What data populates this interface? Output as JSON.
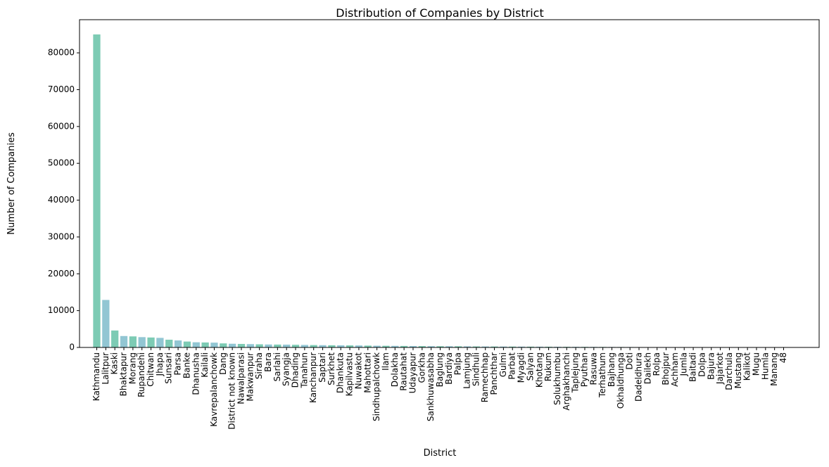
{
  "chart_data": {
    "type": "bar",
    "title": "Distribution of Companies by District",
    "xlabel": "District",
    "ylabel": "Number of Companies",
    "ylim": [
      0,
      89000
    ],
    "yticks": [
      0,
      10000,
      20000,
      30000,
      40000,
      50000,
      60000,
      70000,
      80000
    ],
    "grid": false,
    "colors": [
      "#7dcbb4",
      "#92c6d3"
    ],
    "categories": [
      "Kathmandu",
      "Lalitpur",
      "Kaski",
      "Bhaktapur",
      "Morang",
      "Rupandehi",
      "Chitwan",
      "Jhapa",
      "Sunsari",
      "Parsa",
      "Banke",
      "Dhanusha",
      "Kailali",
      "Kavrepalanchowk",
      "Dang",
      "District not known",
      "Nawalparasi",
      "Makwanpur",
      "Siraha",
      "Bara",
      "Sarlahi",
      "Syangja",
      "Dhading",
      "Tanahun",
      "Kanchanpur",
      "Saptari",
      "Surkhet",
      "Dhankuta",
      "Kapilvastu",
      "Nuwakot",
      "Mahottari",
      "Sindhupalchowk",
      "Ilam",
      "Dolakha",
      "Rautahat",
      "Udayapur",
      "Gorkha",
      "Sankhuwasabha",
      "Baglung",
      "Bardiya",
      "Palpa",
      "Lamjung",
      "Sindhuli",
      "Ramechhap",
      "Panchthar",
      "Gulmi",
      "Parbat",
      "Myagdi",
      "Salyan",
      "Khotang",
      "Rukum",
      "Solukhumbu",
      "Arghakhanchi",
      "Taplejung",
      "Pyuthan",
      "Rasuwa",
      "Terhathum",
      "Bajhang",
      "Okhaldhunga",
      "Doti",
      "Dadeldhura",
      "Dailekh",
      "Rolpa",
      "Bhojpur",
      "Achham",
      "Jumla",
      "Baitadi",
      "Dolpa",
      "Bajura",
      "Jajarkot",
      "Darchula",
      "Mustang",
      "Kalikot",
      "Mugu",
      "Humla",
      "Manang",
      "48"
    ],
    "values": [
      85000,
      12900,
      4600,
      3100,
      3000,
      2800,
      2700,
      2600,
      2100,
      1900,
      1600,
      1400,
      1350,
      1300,
      1100,
      1000,
      950,
      900,
      850,
      800,
      780,
      760,
      720,
      680,
      650,
      620,
      600,
      580,
      560,
      540,
      500,
      470,
      450,
      430,
      410,
      390,
      370,
      350,
      340,
      330,
      320,
      300,
      280,
      270,
      260,
      250,
      240,
      230,
      220,
      210,
      200,
      190,
      180,
      170,
      160,
      150,
      140,
      130,
      120,
      110,
      100,
      95,
      90,
      85,
      80,
      75,
      70,
      65,
      60,
      55,
      50,
      45,
      40,
      30,
      25,
      20,
      5
    ]
  }
}
